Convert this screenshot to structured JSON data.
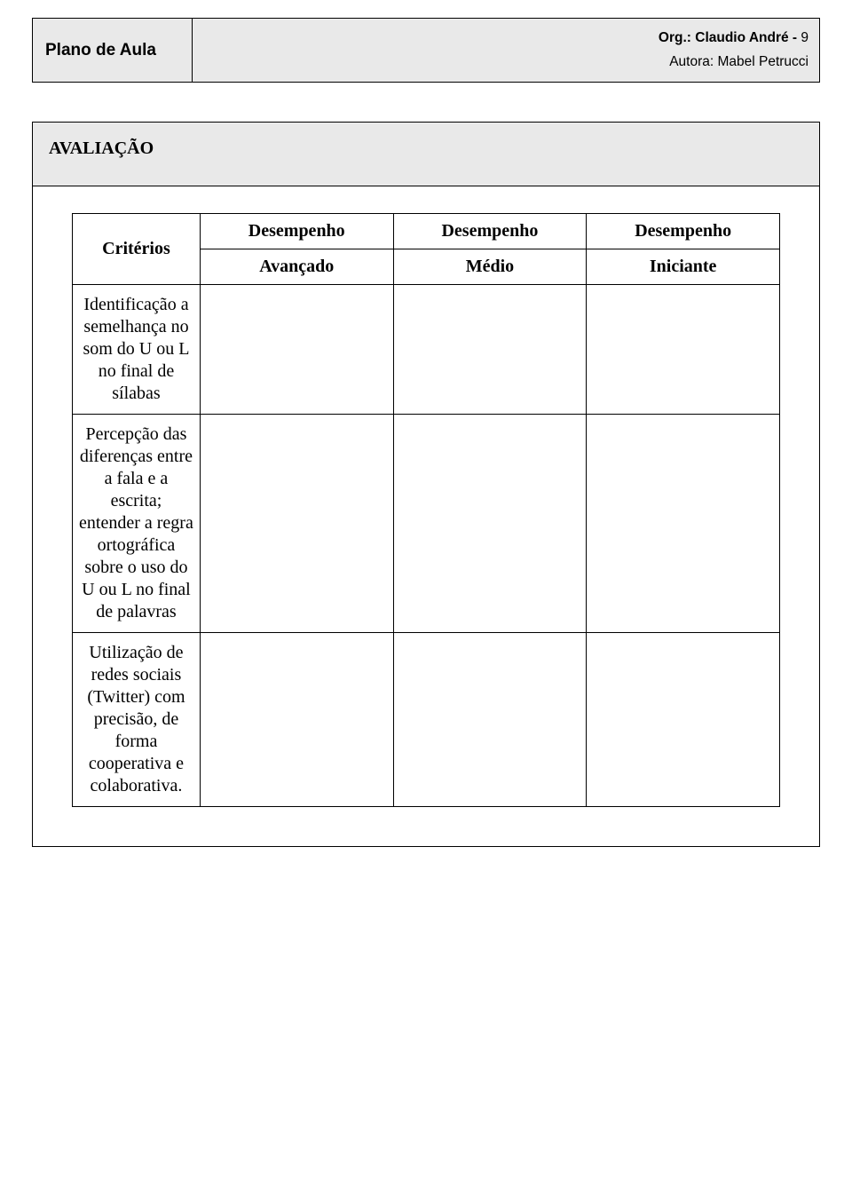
{
  "header": {
    "plano_title": "Plano de Aula",
    "org_label": "Org.: Claudio André - ",
    "org_page": "9",
    "autora": "Autora: Mabel Petrucci"
  },
  "section_title": "AVALIAÇÃO",
  "rubric": {
    "header_row1": {
      "col1": "Critérios",
      "col2": "Desempenho",
      "col3": "Desempenho",
      "col4": "Desempenho"
    },
    "header_row2": {
      "col2": "Avançado",
      "col3": "Médio",
      "col4": "Iniciante"
    },
    "criteria": [
      "Identificação a semelhança no som do U ou L no final de sílabas",
      "Percepção das diferenças entre a fala e a escrita; entender a regra ortográfica sobre o uso do U ou L no final de palavras",
      "Utilização de redes sociais (Twitter) com precisão, de forma cooperativa e colaborativa."
    ]
  },
  "colors": {
    "cell_bg": "#e9e9e9",
    "page_bg": "#ffffff",
    "border": "#000000"
  }
}
